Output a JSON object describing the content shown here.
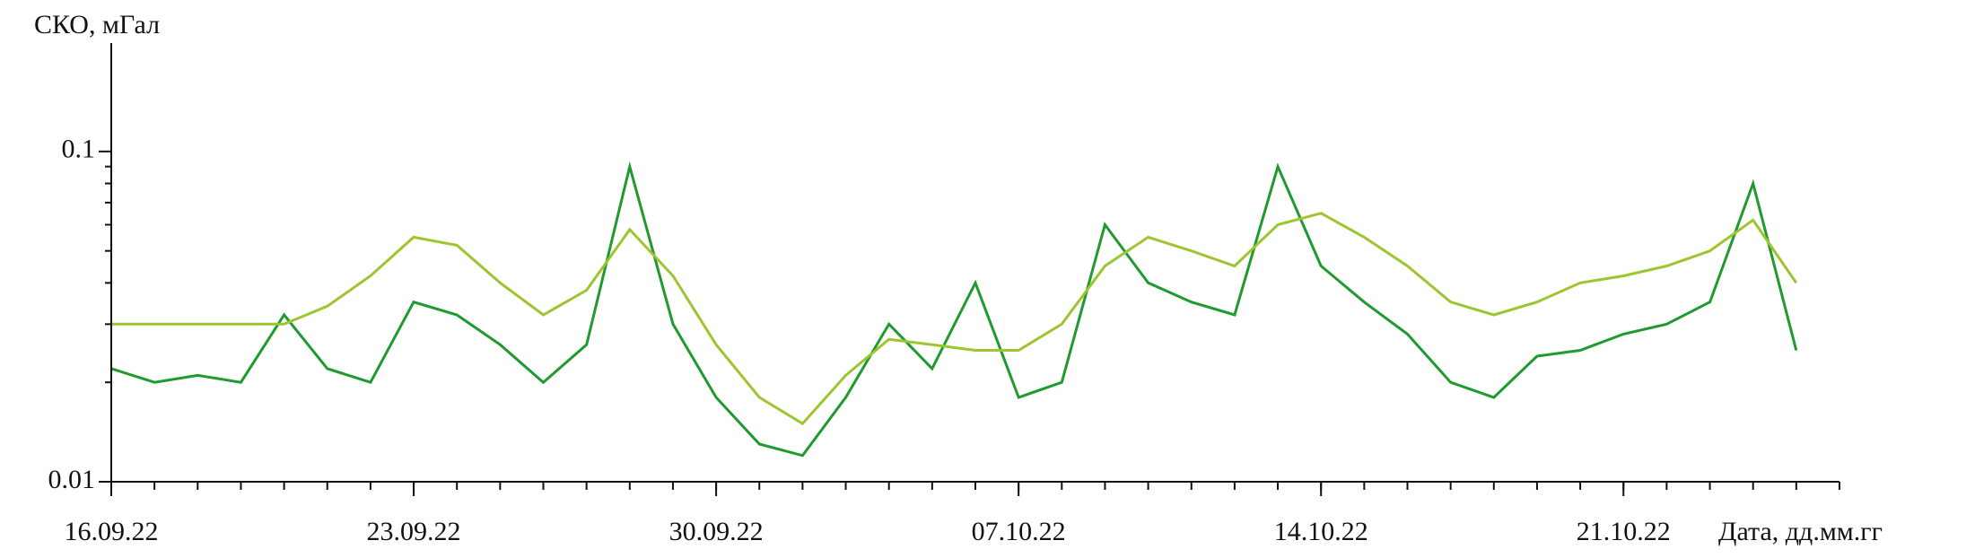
{
  "chart_data": {
    "type": "line",
    "ylabel": "СКО, мГал",
    "xlabel": "Дата, дд.мм.гг",
    "log_y": true,
    "ylim": [
      0.01,
      0.2
    ],
    "yticks": [
      0.01,
      0.1
    ],
    "xlim": [
      0,
      40
    ],
    "xticks": [
      {
        "value": 0,
        "label": "16.09.22"
      },
      {
        "value": 7,
        "label": "23.09.22"
      },
      {
        "value": 14,
        "label": "30.09.22"
      },
      {
        "value": 21,
        "label": "07.10.22"
      },
      {
        "value": 28,
        "label": "14.10.22"
      },
      {
        "value": 35,
        "label": "21.10.22"
      }
    ],
    "x": [
      0,
      1,
      2,
      3,
      4,
      5,
      6,
      7,
      8,
      9,
      10,
      11,
      12,
      13,
      14,
      15,
      16,
      17,
      18,
      19,
      20,
      21,
      22,
      23,
      24,
      25,
      26,
      27,
      28,
      29,
      30,
      31,
      32,
      33,
      34,
      35,
      36,
      37,
      38,
      39
    ],
    "series": [
      {
        "color": "#1f9a2e",
        "values": [
          0.022,
          0.02,
          0.021,
          0.02,
          0.032,
          0.022,
          0.02,
          0.035,
          0.032,
          0.026,
          0.02,
          0.026,
          0.09,
          0.03,
          0.018,
          0.013,
          0.012,
          0.018,
          0.03,
          0.022,
          0.04,
          0.018,
          0.02,
          0.06,
          0.04,
          0.035,
          0.032,
          0.09,
          0.045,
          0.035,
          0.028,
          0.02,
          0.018,
          0.024,
          0.025,
          0.028,
          0.03,
          0.035,
          0.08,
          0.025
        ]
      },
      {
        "color": "#9cc52e",
        "values": [
          0.03,
          0.03,
          0.03,
          0.03,
          0.03,
          0.034,
          0.042,
          0.055,
          0.052,
          0.04,
          0.032,
          0.038,
          0.058,
          0.042,
          0.026,
          0.018,
          0.015,
          0.021,
          0.027,
          0.026,
          0.025,
          0.025,
          0.03,
          0.045,
          0.055,
          0.05,
          0.045,
          0.06,
          0.065,
          0.055,
          0.045,
          0.035,
          0.032,
          0.035,
          0.04,
          0.042,
          0.045,
          0.05,
          0.062,
          0.04
        ]
      }
    ]
  }
}
